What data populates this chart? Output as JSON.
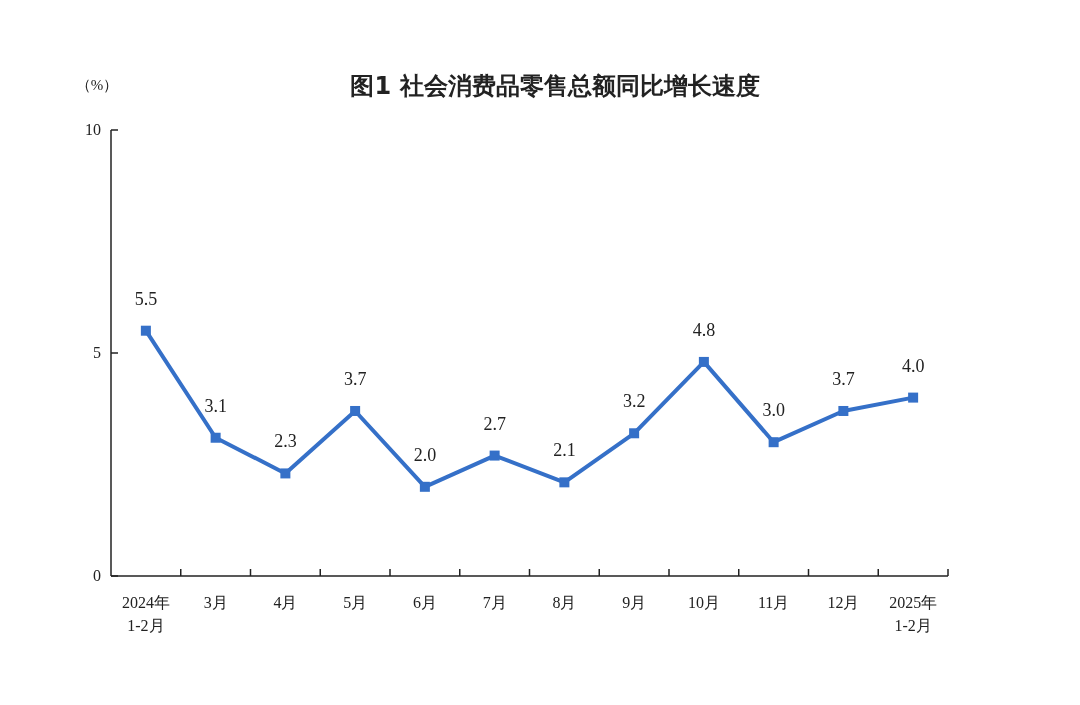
{
  "chart_data": {
    "type": "line",
    "title": "图1  社会消费品零售总额同比增长速度",
    "ylabel": "（%）",
    "categories": [
      "2024年\n1-2月",
      "3月",
      "4月",
      "5月",
      "6月",
      "7月",
      "8月",
      "9月",
      "10月",
      "11月",
      "12月",
      "2025年\n1-2月"
    ],
    "series": [
      {
        "color": "#3570c8",
        "values": [
          5.5,
          3.1,
          2.3,
          3.7,
          2.0,
          2.7,
          2.1,
          3.2,
          4.8,
          3.0,
          3.7,
          4.0
        ],
        "value_labels": [
          "5.5",
          "3.1",
          "2.3",
          "3.7",
          "2.0",
          "2.7",
          "2.1",
          "3.2",
          "4.8",
          "3.0",
          "3.7",
          "4.0"
        ]
      }
    ],
    "ylim": [
      0,
      10
    ],
    "yticks": [
      0,
      5,
      10
    ],
    "marker": "square",
    "line_style": "solid",
    "grid": false
  }
}
